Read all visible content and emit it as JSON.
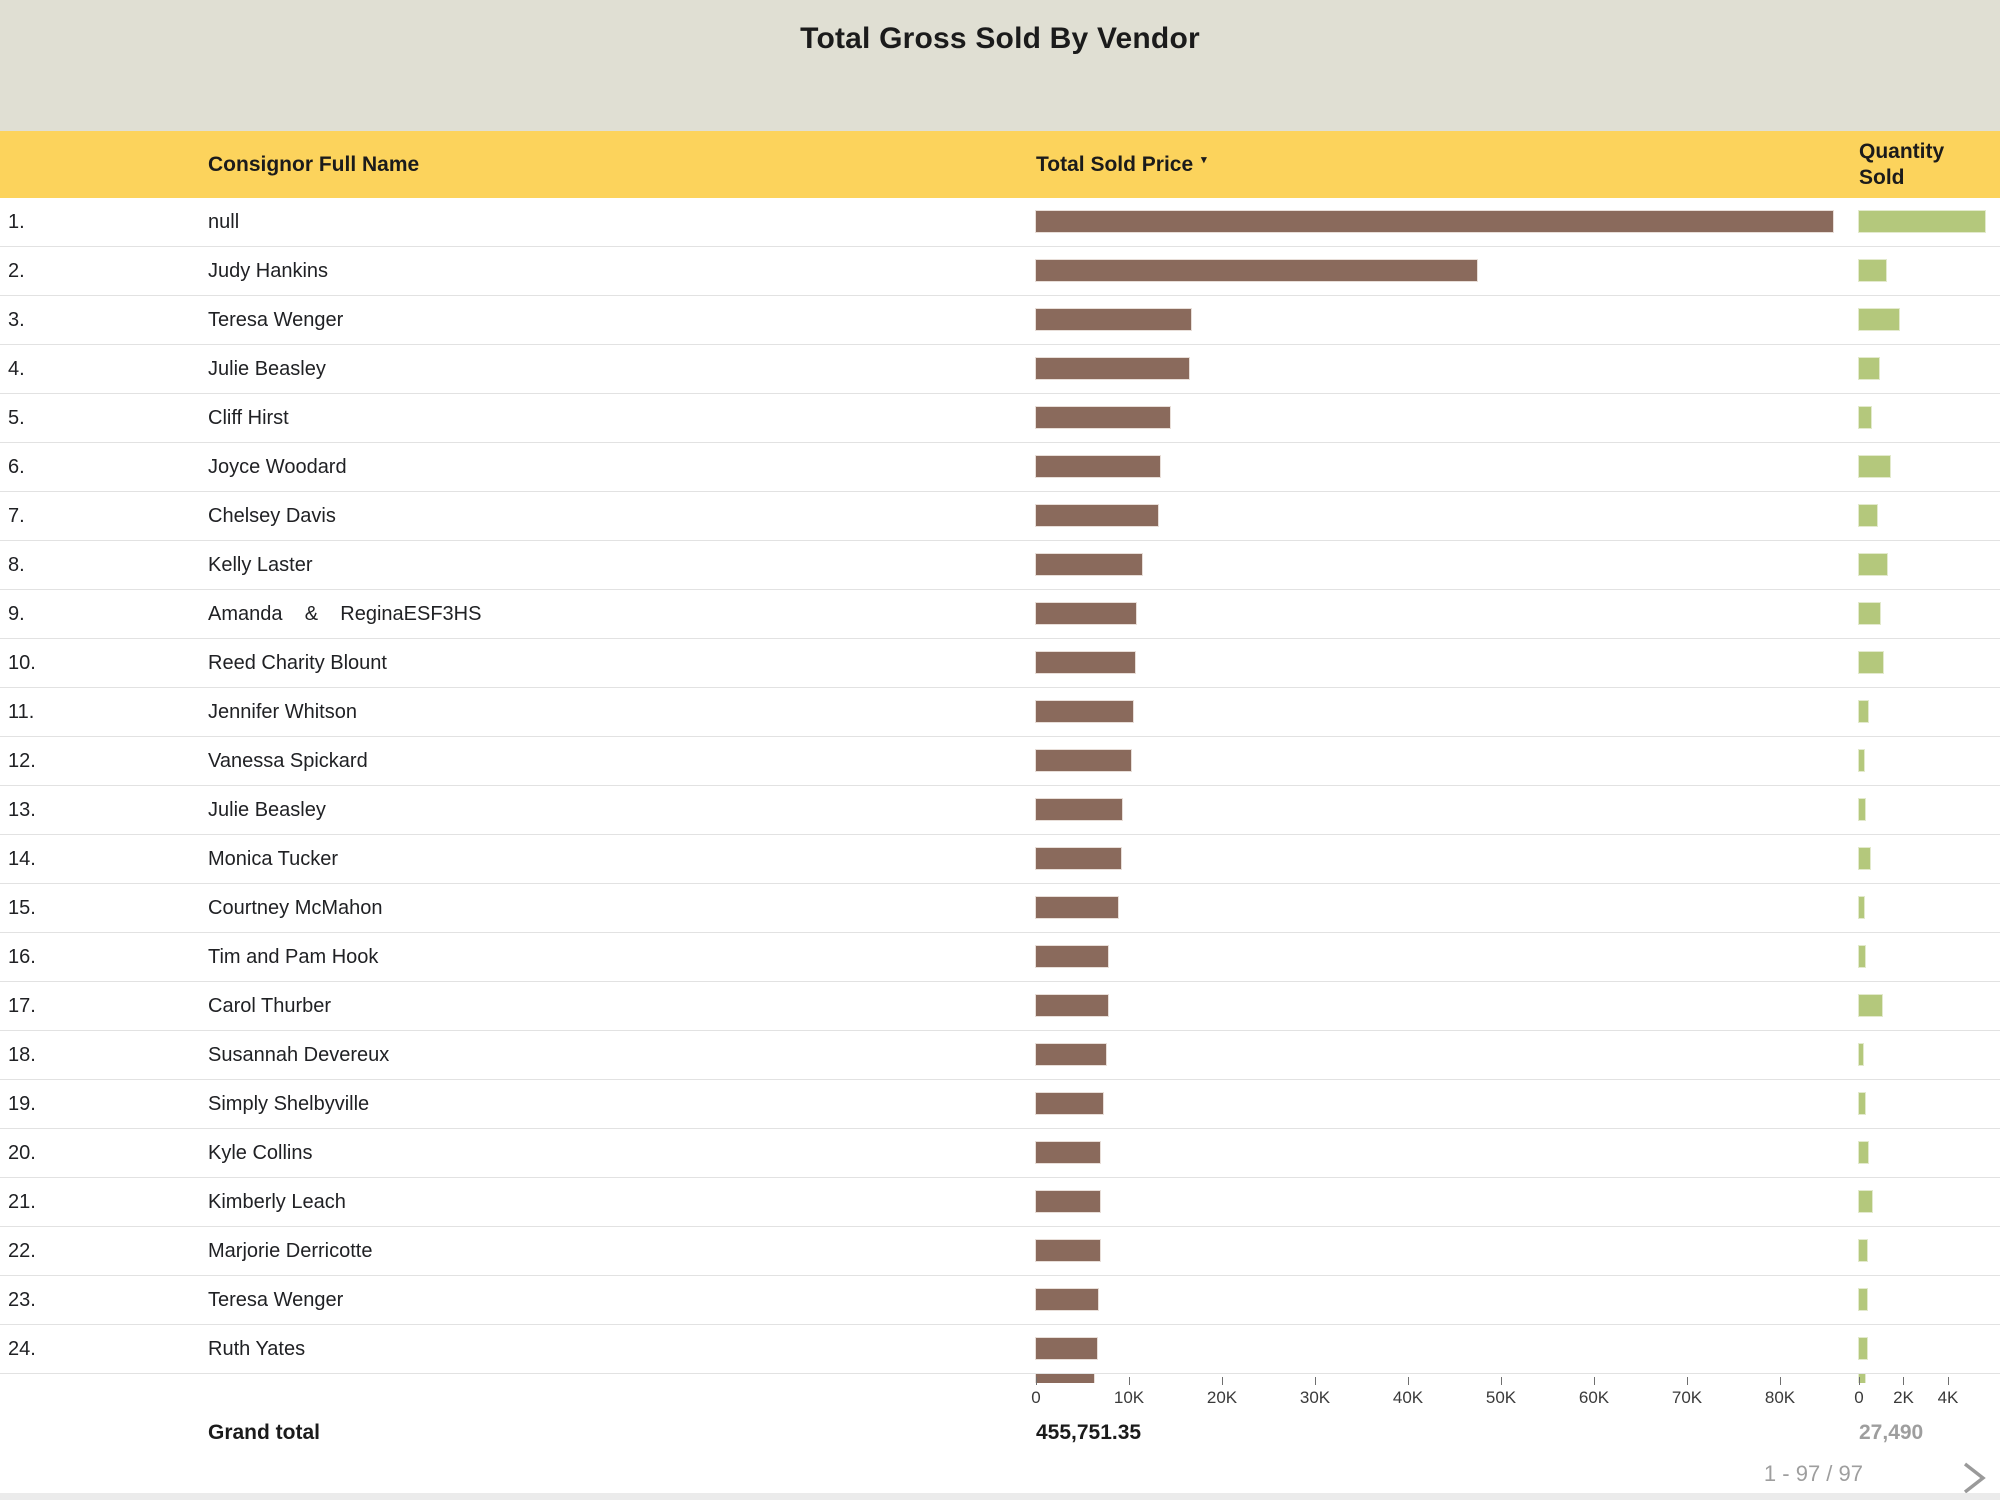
{
  "chart_data": {
    "type": "table",
    "title": "Total Gross Sold By Vendor",
    "columns": [
      {
        "label": "Consignor Full Name"
      },
      {
        "label": "Total Sold Price",
        "sorted": "desc",
        "sort_indicator": "▾"
      },
      {
        "label": "Quantity Sold"
      }
    ],
    "price_axis": {
      "tick_labels": [
        "0",
        "10K",
        "20K",
        "30K",
        "40K",
        "50K",
        "60K",
        "70K",
        "80K"
      ],
      "tick_values": [
        0,
        10000,
        20000,
        30000,
        40000,
        50000,
        60000,
        70000,
        80000
      ],
      "range": [
        0,
        86000
      ]
    },
    "quantity_axis": {
      "tick_labels": [
        "0",
        "2K",
        "4K"
      ],
      "tick_values": [
        0,
        2000,
        4000
      ],
      "range": [
        0,
        5700
      ]
    },
    "rows": [
      {
        "rank": "1.",
        "name": "null",
        "total_sold_price": 85700,
        "quantity_sold": 5680
      },
      {
        "rank": "2.",
        "name": "Judy Hankins",
        "total_sold_price": 47400,
        "quantity_sold": 1230
      },
      {
        "rank": "3.",
        "name": "Teresa Wenger",
        "total_sold_price": 16700,
        "quantity_sold": 1800
      },
      {
        "rank": "4.",
        "name": "Julie Beasley",
        "total_sold_price": 16500,
        "quantity_sold": 900
      },
      {
        "rank": "5.",
        "name": "Cliff Hirst",
        "total_sold_price": 14400,
        "quantity_sold": 520
      },
      {
        "rank": "6.",
        "name": "Joyce Woodard",
        "total_sold_price": 13300,
        "quantity_sold": 1380
      },
      {
        "rank": "7.",
        "name": "Chelsey Davis",
        "total_sold_price": 13100,
        "quantity_sold": 820
      },
      {
        "rank": "8.",
        "name": "Kelly Laster",
        "total_sold_price": 11400,
        "quantity_sold": 1250
      },
      {
        "rank": "9.",
        "name": "Amanda    &    ReginaESF3HS",
        "total_sold_price": 10800,
        "quantity_sold": 950
      },
      {
        "rank": "10.",
        "name": "Reed Charity Blount",
        "total_sold_price": 10600,
        "quantity_sold": 1080
      },
      {
        "rank": "11.",
        "name": "Jennifer Whitson",
        "total_sold_price": 10400,
        "quantity_sold": 390
      },
      {
        "rank": "12.",
        "name": "Vanessa Spickard",
        "total_sold_price": 10200,
        "quantity_sold": 215
      },
      {
        "rank": "13.",
        "name": "Julie Beasley",
        "total_sold_price": 9300,
        "quantity_sold": 260
      },
      {
        "rank": "14.",
        "name": "Monica Tucker",
        "total_sold_price": 9100,
        "quantity_sold": 480
      },
      {
        "rank": "15.",
        "name": "Courtney McMahon",
        "total_sold_price": 8800,
        "quantity_sold": 230
      },
      {
        "rank": "16.",
        "name": "Tim and Pam Hook",
        "total_sold_price": 7750,
        "quantity_sold": 250
      },
      {
        "rank": "17.",
        "name": "Carol Thurber",
        "total_sold_price": 7750,
        "quantity_sold": 1020
      },
      {
        "rank": "18.",
        "name": "Susannah Devereux",
        "total_sold_price": 7500,
        "quantity_sold": 180
      },
      {
        "rank": "19.",
        "name": "Simply Shelbyville",
        "total_sold_price": 7200,
        "quantity_sold": 290
      },
      {
        "rank": "20.",
        "name": "Kyle Collins",
        "total_sold_price": 6900,
        "quantity_sold": 420
      },
      {
        "rank": "21.",
        "name": "Kimberly Leach",
        "total_sold_price": 6900,
        "quantity_sold": 600
      },
      {
        "rank": "22.",
        "name": "Marjorie Derricotte",
        "total_sold_price": 6900,
        "quantity_sold": 380
      },
      {
        "rank": "23.",
        "name": "Teresa Wenger",
        "total_sold_price": 6700,
        "quantity_sold": 380
      },
      {
        "rank": "24.",
        "name": "Ruth Yates",
        "total_sold_price": 6550,
        "quantity_sold": 350
      },
      {
        "rank": "",
        "name": "",
        "total_sold_price": 6200,
        "quantity_sold": 250,
        "partial": true
      }
    ],
    "grand_total": {
      "label": "Grand total",
      "total_sold_price": "455,751.35",
      "quantity_sold": "27,490"
    }
  },
  "pagination": {
    "range_label": "1 - 97 / 97",
    "next_icon": "chevron-right-icon"
  },
  "colors": {
    "title_bg": "#e0dfd3",
    "header_bg": "#fcd35c",
    "price_bar": "#8a6a5c",
    "quantity_bar": "#b4c87c",
    "row_border": "#e2e2e2",
    "muted_text": "#9e9e9e",
    "text": "#202124"
  }
}
